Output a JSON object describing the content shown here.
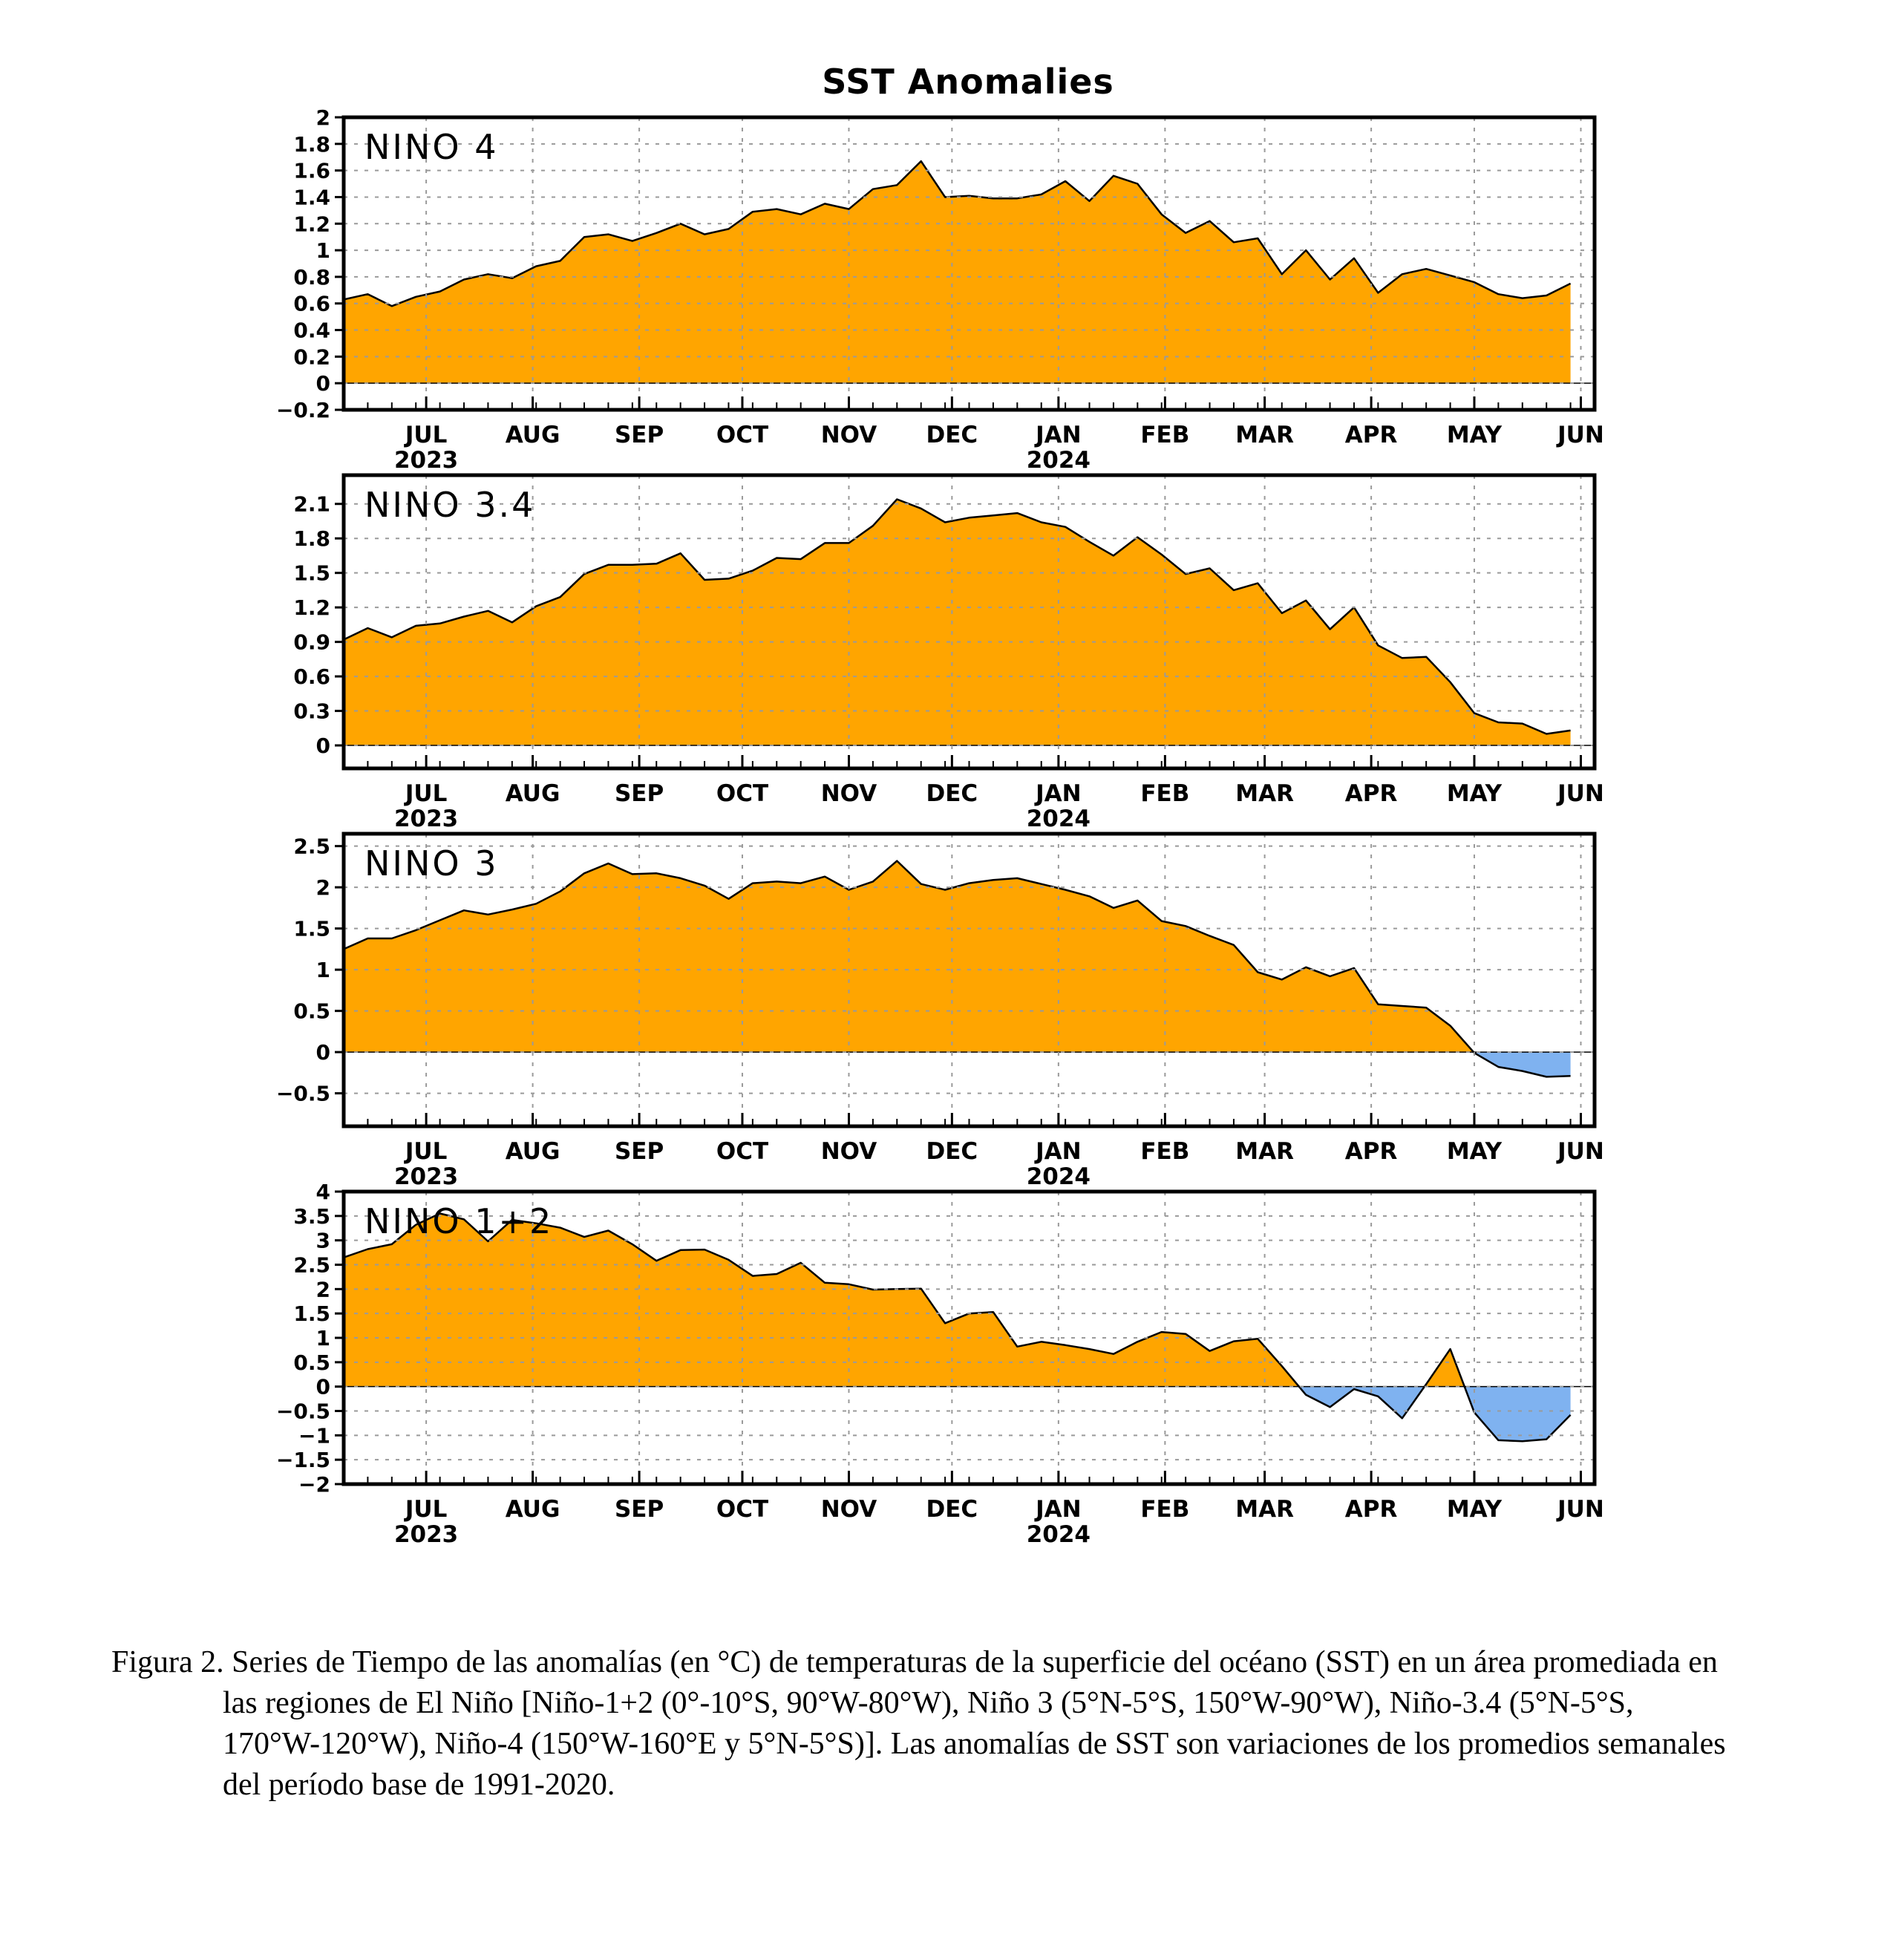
{
  "figure": {
    "title": "SST Anomalies",
    "caption": "Figura 2. Series de Tiempo de las anomalías (en °C) de temperaturas de la superficie del océano (SST) en un área promediada en las regiones de El Niño [Niño-1+2 (0°-10°S, 90°W-80°W), Niño 3 (5°N-5°S, 150°W-90°W), Niño-3.4 (5°N-5°S, 170°W-120°W), Niño-4 (150°W-160°E y 5°N-5°S)]. Las anomalías de SST son variaciones de los promedios semanales del período base de 1991-2020."
  },
  "colors": {
    "positive": "#FFA500",
    "negative": "#7FB2F0",
    "line": "#000000",
    "grid": "#9a9a9a"
  },
  "chart_data": [
    {
      "type": "area",
      "label": "NINO 4",
      "xlabel": "",
      "ylabel": "",
      "x_start": "2023-06-07",
      "x_step_days": 7,
      "ylim": [
        -0.2,
        2.0
      ],
      "yticks": [
        "−0.2",
        "0",
        "0.2",
        "0.4",
        "0.6",
        "0.8",
        "1",
        "1.2",
        "1.4",
        "1.6",
        "1.8",
        "2"
      ],
      "values": [
        0.63,
        0.67,
        0.58,
        0.65,
        0.69,
        0.78,
        0.82,
        0.79,
        0.88,
        0.92,
        1.1,
        1.12,
        1.07,
        1.13,
        1.2,
        1.12,
        1.16,
        1.29,
        1.31,
        1.27,
        1.35,
        1.31,
        1.46,
        1.49,
        1.67,
        1.4,
        1.41,
        1.39,
        1.39,
        1.42,
        1.52,
        1.37,
        1.56,
        1.5,
        1.27,
        1.13,
        1.22,
        1.06,
        1.09,
        0.82,
        1.0,
        0.78,
        0.94,
        0.68,
        0.82,
        0.86,
        0.81,
        0.76,
        0.67,
        0.64,
        0.66,
        0.75
      ],
      "grid": true
    },
    {
      "type": "area",
      "label": "NINO 3.4",
      "xlabel": "",
      "ylabel": "",
      "x_start": "2023-06-07",
      "x_step_days": 7,
      "ylim": [
        -0.2,
        2.35
      ],
      "yticks": [
        "0",
        "0.3",
        "0.6",
        "0.9",
        "1.2",
        "1.5",
        "1.8",
        "2.1"
      ],
      "values": [
        0.92,
        1.02,
        0.94,
        1.04,
        1.06,
        1.12,
        1.17,
        1.07,
        1.21,
        1.29,
        1.49,
        1.57,
        1.57,
        1.58,
        1.67,
        1.44,
        1.45,
        1.52,
        1.63,
        1.62,
        1.76,
        1.76,
        1.91,
        2.14,
        2.06,
        1.94,
        1.98,
        2.0,
        2.02,
        1.94,
        1.9,
        1.77,
        1.65,
        1.81,
        1.66,
        1.49,
        1.54,
        1.35,
        1.41,
        1.15,
        1.26,
        1.01,
        1.2,
        0.87,
        0.76,
        0.77,
        0.55,
        0.28,
        0.2,
        0.19,
        0.1,
        0.13
      ],
      "grid": true
    },
    {
      "type": "area",
      "label": "NINO 3",
      "xlabel": "",
      "ylabel": "",
      "x_start": "2023-06-07",
      "x_step_days": 7,
      "ylim": [
        -0.9,
        2.65
      ],
      "yticks": [
        "−0.5",
        "0",
        "0.5",
        "1",
        "1.5",
        "2",
        "2.5"
      ],
      "values": [
        1.25,
        1.38,
        1.38,
        1.48,
        1.6,
        1.72,
        1.67,
        1.73,
        1.8,
        1.95,
        2.17,
        2.29,
        2.16,
        2.17,
        2.11,
        2.02,
        1.86,
        2.05,
        2.07,
        2.05,
        2.13,
        1.97,
        2.07,
        2.32,
        2.04,
        1.97,
        2.05,
        2.09,
        2.11,
        2.04,
        1.97,
        1.89,
        1.75,
        1.84,
        1.59,
        1.53,
        1.41,
        1.3,
        0.97,
        0.88,
        1.03,
        0.92,
        1.02,
        0.58,
        0.56,
        0.54,
        0.32,
        -0.01,
        -0.18,
        -0.23,
        -0.3,
        -0.29
      ],
      "grid": true
    },
    {
      "type": "area",
      "label": "NINO 1+2",
      "xlabel": "",
      "ylabel": "",
      "x_start": "2023-06-07",
      "x_step_days": 7,
      "ylim": [
        -2.0,
        4.0
      ],
      "yticks": [
        "−2",
        "−1.5",
        "−1",
        "−0.5",
        "0",
        "0.5",
        "1",
        "1.5",
        "2",
        "2.5",
        "3",
        "3.5",
        "4"
      ],
      "values": [
        2.65,
        2.82,
        2.92,
        3.32,
        3.55,
        3.43,
        2.98,
        3.42,
        3.35,
        3.26,
        3.07,
        3.2,
        2.92,
        2.58,
        2.8,
        2.81,
        2.6,
        2.27,
        2.31,
        2.54,
        2.13,
        2.1,
        1.99,
        2.0,
        2.01,
        1.3,
        1.5,
        1.53,
        0.82,
        0.92,
        0.85,
        0.77,
        0.67,
        0.92,
        1.12,
        1.08,
        0.73,
        0.93,
        0.98,
        0.42,
        -0.17,
        -0.42,
        -0.05,
        -0.2,
        -0.65,
        0.05,
        0.77,
        -0.53,
        -1.1,
        -1.12,
        -1.08,
        -0.58
      ],
      "grid": true
    }
  ],
  "x_axis": {
    "months": [
      "JUL",
      "AUG",
      "SEP",
      "OCT",
      "NOV",
      "DEC",
      "JAN",
      "FEB",
      "MAR",
      "APR",
      "MAY",
      "JUN"
    ],
    "month_dates": [
      "2023-07-01",
      "2023-08-01",
      "2023-09-01",
      "2023-10-01",
      "2023-11-01",
      "2023-12-01",
      "2024-01-01",
      "2024-02-01",
      "2024-03-01",
      "2024-04-01",
      "2024-05-01",
      "2024-06-01"
    ],
    "years": [
      "2023",
      "2024"
    ],
    "year_under_months": [
      "JUL",
      "JAN"
    ],
    "x_range": [
      "2023-06-07",
      "2024-06-05"
    ]
  }
}
